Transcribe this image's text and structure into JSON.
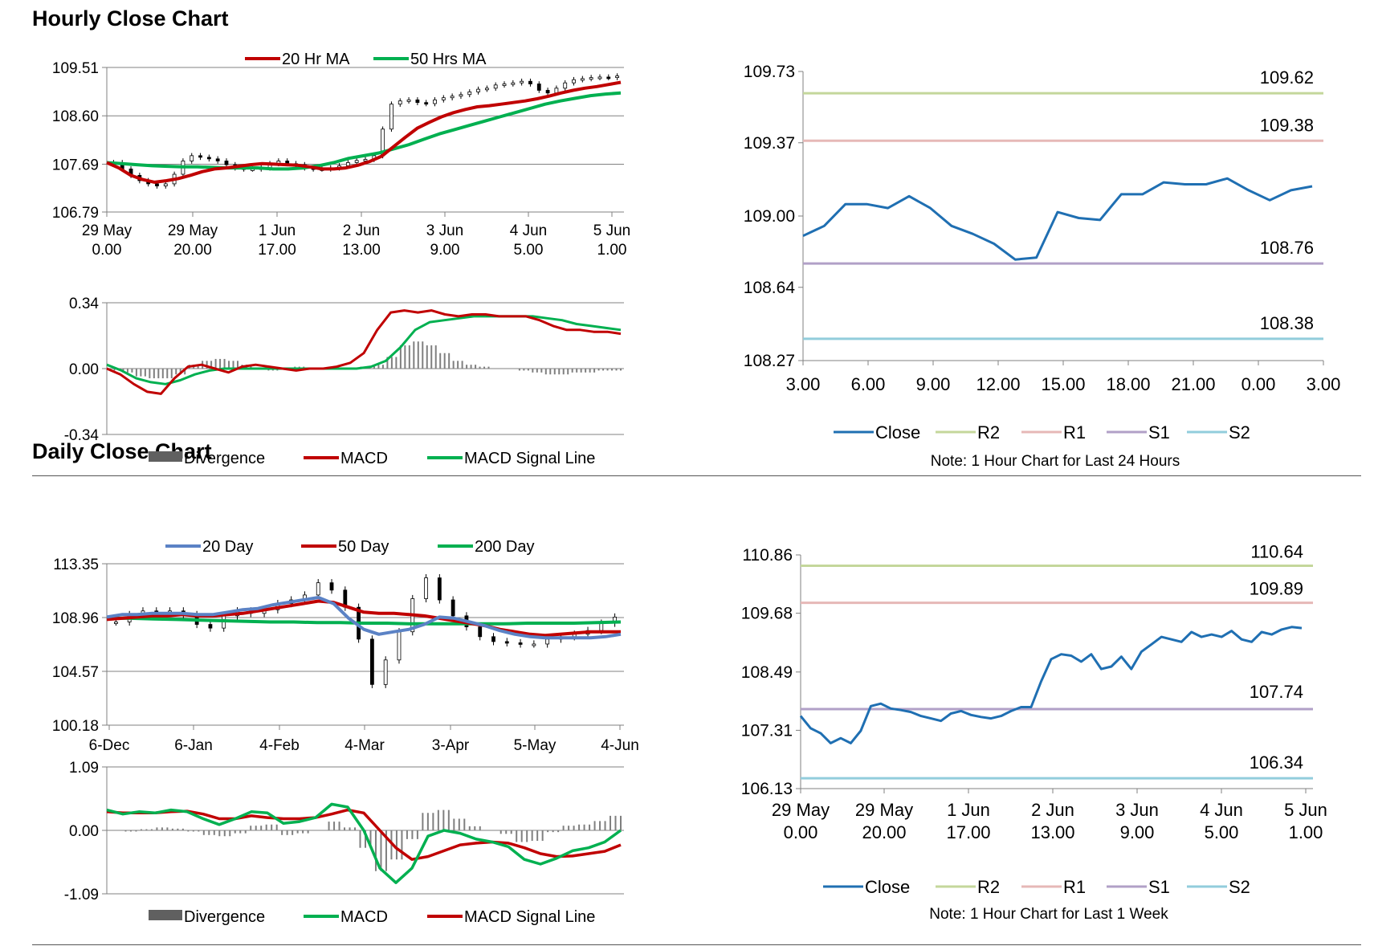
{
  "sections": {
    "hourly_title": "Hourly Close Chart",
    "daily_title": "Daily Close Chart"
  },
  "colors": {
    "red": "#C00000",
    "green": "#00B050",
    "blue_ma": "#5B82C5",
    "close_blue": "#1F6FB2",
    "r2": "#C4D79B",
    "r1": "#E6B8B7",
    "s1": "#B1A0C7",
    "s2": "#92CDDC",
    "bars": "#7F7F7F",
    "grid": "#808080"
  },
  "chart_data": [
    {
      "id": "hourly_price",
      "type": "candlestick-with-ma",
      "title": "",
      "ylim": [
        106.79,
        109.51
      ],
      "y_ticks": [
        "109.51",
        "108.60",
        "107.69",
        "106.79"
      ],
      "x_ticks": [
        [
          "29 May",
          "0.00"
        ],
        [
          "29 May",
          "20.00"
        ],
        [
          "1 Jun",
          "17.00"
        ],
        [
          "2 Jun",
          "13.00"
        ],
        [
          "3 Jun",
          "9.00"
        ],
        [
          "4 Jun",
          "5.00"
        ],
        [
          "5 Jun",
          "1.00"
        ]
      ],
      "legend": [
        "20 Hr MA",
        "50 Hrs MA"
      ],
      "series": [
        {
          "name": "Close",
          "values": [
            107.72,
            107.6,
            107.48,
            107.38,
            107.32,
            107.28,
            107.32,
            107.5,
            107.75,
            107.85,
            107.82,
            107.79,
            107.75,
            107.68,
            107.62,
            107.6,
            107.6,
            107.62,
            107.7,
            107.75,
            107.7,
            107.68,
            107.62,
            107.6,
            107.6,
            107.62,
            107.66,
            107.72,
            107.76,
            107.78,
            107.85,
            108.35,
            108.82,
            108.88,
            108.9,
            108.85,
            108.83,
            108.9,
            108.94,
            108.97,
            109.0,
            109.05,
            109.1,
            109.12,
            109.18,
            109.2,
            109.22,
            109.25,
            109.2,
            109.08,
            109.03,
            109.12,
            109.22,
            109.28,
            109.3,
            109.32,
            109.33,
            109.32,
            109.35
          ]
        },
        {
          "name": "20 Hr MA",
          "values": [
            107.72,
            107.62,
            107.48,
            107.4,
            107.35,
            107.38,
            107.42,
            107.48,
            107.55,
            107.6,
            107.62,
            107.65,
            107.68,
            107.7,
            107.69,
            107.68,
            107.67,
            107.64,
            107.6,
            107.6,
            107.62,
            107.67,
            107.74,
            107.84,
            108.02,
            108.2,
            108.37,
            108.48,
            108.58,
            108.66,
            108.72,
            108.77,
            108.79,
            108.82,
            108.85,
            108.88,
            108.92,
            108.97,
            109.03,
            109.08,
            109.12,
            109.15,
            109.19,
            109.23
          ]
        },
        {
          "name": "50 Hrs MA",
          "values": [
            107.72,
            107.7,
            107.68,
            107.66,
            107.65,
            107.64,
            107.64,
            107.63,
            107.62,
            107.62,
            107.62,
            107.6,
            107.6,
            107.62,
            107.66,
            107.72,
            107.8,
            107.85,
            107.9,
            107.98,
            108.06,
            108.16,
            108.26,
            108.34,
            108.42,
            108.5,
            108.58,
            108.66,
            108.74,
            108.82,
            108.88,
            108.93,
            108.98,
            109.01,
            109.03
          ]
        }
      ]
    },
    {
      "id": "hourly_macd",
      "type": "macd",
      "ylim": [
        -0.34,
        0.34
      ],
      "y_ticks": [
        "0.34",
        "0.00",
        "-0.34"
      ],
      "legend": [
        "Divergence",
        "MACD",
        "MACD Signal Line"
      ],
      "series": [
        {
          "name": "MACD",
          "values": [
            0.0,
            -0.03,
            -0.08,
            -0.12,
            -0.13,
            -0.05,
            0.01,
            0.02,
            0.0,
            -0.02,
            0.01,
            0.02,
            0.01,
            0.0,
            -0.01,
            0.0,
            0.0,
            0.01,
            0.03,
            0.08,
            0.2,
            0.29,
            0.3,
            0.29,
            0.3,
            0.28,
            0.27,
            0.28,
            0.28,
            0.27,
            0.27,
            0.27,
            0.25,
            0.22,
            0.2,
            0.2,
            0.19,
            0.19,
            0.18
          ]
        },
        {
          "name": "MACD Signal Line",
          "values": [
            0.02,
            -0.01,
            -0.05,
            -0.07,
            -0.08,
            -0.06,
            -0.03,
            -0.01,
            0.0,
            0.0,
            0.0,
            0.0,
            0.0,
            0.0,
            0.0,
            0.0,
            0.0,
            0.0,
            0.01,
            0.04,
            0.11,
            0.2,
            0.24,
            0.25,
            0.26,
            0.27,
            0.27,
            0.27,
            0.27,
            0.27,
            0.26,
            0.25,
            0.23,
            0.22,
            0.21,
            0.2
          ]
        },
        {
          "name": "Divergence",
          "values": [
            -0.01,
            -0.02,
            -0.04,
            -0.05,
            -0.05,
            -0.03,
            0.02,
            0.04,
            0.05,
            0.04,
            0.02,
            0.0,
            -0.01,
            0.0,
            0.01,
            0.0,
            0.0,
            0.0,
            0.0,
            0.01,
            0.02,
            0.06,
            0.12,
            0.14,
            0.12,
            0.08,
            0.04,
            0.02,
            0.01,
            0.0,
            0.0,
            -0.01,
            -0.02,
            -0.03,
            -0.03,
            -0.02,
            -0.02,
            -0.01,
            -0.01
          ]
        }
      ]
    },
    {
      "id": "hourly_levels",
      "type": "line",
      "ylim": [
        108.27,
        109.73
      ],
      "y_ticks": [
        "109.73",
        "109.37",
        "109.00",
        "108.64",
        "108.27"
      ],
      "x_ticks": [
        "3.00",
        "6.00",
        "9.00",
        "12.00",
        "15.00",
        "18.00",
        "21.00",
        "0.00",
        "3.00"
      ],
      "legend": [
        "Close",
        "R2",
        "R1",
        "S1",
        "S2"
      ],
      "levels": [
        {
          "name": "R2",
          "value": 109.62,
          "label": "109.62"
        },
        {
          "name": "R1",
          "value": 109.38,
          "label": "109.38"
        },
        {
          "name": "S1",
          "value": 108.76,
          "label": "108.76"
        },
        {
          "name": "S2",
          "value": 108.38,
          "label": "108.38"
        }
      ],
      "series": [
        {
          "name": "Close",
          "values": [
            108.9,
            108.95,
            109.06,
            109.06,
            109.04,
            109.1,
            109.04,
            108.95,
            108.91,
            108.86,
            108.78,
            108.79,
            109.02,
            108.99,
            108.98,
            109.11,
            109.11,
            109.17,
            109.16,
            109.16,
            109.19,
            109.13,
            109.08,
            109.13,
            109.15
          ]
        }
      ],
      "note": "Note: 1 Hour Chart for Last 24 Hours"
    },
    {
      "id": "daily_price",
      "type": "candlestick-with-ma",
      "ylim": [
        100.18,
        113.35
      ],
      "y_ticks": [
        "113.35",
        "108.96",
        "104.57",
        "100.18"
      ],
      "x_ticks": [
        "6-Dec",
        "6-Jan",
        "4-Feb",
        "4-Mar",
        "3-Apr",
        "5-May",
        "4-Jun"
      ],
      "legend": [
        "20 Day",
        "50 Day",
        "200 Day"
      ],
      "series": [
        {
          "name": "Close",
          "values": [
            108.6,
            109.2,
            109.5,
            109.4,
            109.5,
            109.2,
            108.4,
            108.1,
            109.1,
            109.5,
            109.3,
            109.6,
            110.1,
            110.4,
            110.8,
            111.8,
            111.2,
            109.8,
            107.2,
            103.5,
            105.5,
            107.8,
            110.5,
            112.2,
            110.4,
            109.1,
            108.2,
            107.4,
            107.0,
            106.9,
            106.8,
            106.8,
            107.2,
            107.4,
            107.6,
            107.9,
            108.5,
            109.0
          ]
        },
        {
          "name": "20 Day",
          "values": [
            109.0,
            109.2,
            109.2,
            109.3,
            109.3,
            109.3,
            109.2,
            109.2,
            109.4,
            109.6,
            109.7,
            110.0,
            110.2,
            110.4,
            110.6,
            110.1,
            108.9,
            108.0,
            107.6,
            107.8,
            108.0,
            108.4,
            109.0,
            108.9,
            108.6,
            108.3,
            107.9,
            107.6,
            107.4,
            107.3,
            107.3,
            107.3,
            107.3,
            107.4,
            107.6
          ]
        },
        {
          "name": "50 Day",
          "values": [
            108.8,
            108.9,
            109.0,
            109.1,
            109.1,
            109.2,
            109.1,
            109.1,
            109.2,
            109.3,
            109.5,
            109.7,
            109.9,
            110.1,
            110.3,
            110.2,
            109.8,
            109.4,
            109.3,
            109.3,
            109.2,
            109.1,
            108.9,
            108.7,
            108.5,
            108.3,
            108.0,
            107.8,
            107.6,
            107.5,
            107.6,
            107.7,
            107.8,
            107.8,
            107.8
          ]
        },
        {
          "name": "200 Day",
          "values": [
            108.9,
            108.9,
            108.85,
            108.8,
            108.75,
            108.7,
            108.65,
            108.6,
            108.6,
            108.55,
            108.55,
            108.5,
            108.5,
            108.45,
            108.45,
            108.45,
            108.45,
            108.45,
            108.5,
            108.5,
            108.5,
            108.55,
            108.6
          ]
        }
      ]
    },
    {
      "id": "daily_macd",
      "type": "macd",
      "ylim": [
        -1.09,
        1.09
      ],
      "y_ticks": [
        "1.09",
        "0.00",
        "-1.09"
      ],
      "legend": [
        "Divergence",
        "MACD",
        "MACD Signal Line"
      ],
      "series": [
        {
          "name": "MACD",
          "values": [
            0.35,
            0.28,
            0.32,
            0.3,
            0.35,
            0.32,
            0.2,
            0.1,
            0.2,
            0.32,
            0.3,
            0.12,
            0.15,
            0.22,
            0.45,
            0.4,
            0.0,
            -0.65,
            -0.9,
            -0.65,
            -0.1,
            0.0,
            -0.05,
            -0.15,
            -0.2,
            -0.28,
            -0.5,
            -0.58,
            -0.48,
            -0.35,
            -0.3,
            -0.2,
            0.0
          ]
        },
        {
          "name": "MACD Signal Line",
          "values": [
            0.32,
            0.3,
            0.3,
            0.3,
            0.32,
            0.33,
            0.28,
            0.2,
            0.2,
            0.25,
            0.22,
            0.2,
            0.2,
            0.22,
            0.28,
            0.35,
            0.3,
            0.0,
            -0.3,
            -0.5,
            -0.45,
            -0.35,
            -0.25,
            -0.22,
            -0.2,
            -0.22,
            -0.3,
            -0.4,
            -0.45,
            -0.44,
            -0.4,
            -0.36,
            -0.25
          ]
        },
        {
          "name": "Divergence",
          "values": [
            0.0,
            -0.02,
            0.02,
            0.05,
            0.03,
            -0.02,
            -0.08,
            -0.1,
            -0.05,
            0.08,
            0.1,
            -0.08,
            -0.05,
            0.0,
            0.15,
            0.05,
            -0.3,
            -0.7,
            -0.5,
            -0.15,
            0.3,
            0.35,
            0.2,
            0.07,
            0.0,
            -0.06,
            -0.2,
            -0.18,
            -0.03,
            0.08,
            0.1,
            0.16,
            0.25
          ]
        }
      ]
    },
    {
      "id": "daily_levels",
      "type": "line",
      "ylim": [
        106.13,
        110.86
      ],
      "y_ticks": [
        "110.86",
        "109.68",
        "108.49",
        "107.31",
        "106.13"
      ],
      "x_ticks": [
        [
          "29 May",
          "0.00"
        ],
        [
          "29 May",
          "20.00"
        ],
        [
          "1 Jun",
          "17.00"
        ],
        [
          "2 Jun",
          "13.00"
        ],
        [
          "3 Jun",
          "9.00"
        ],
        [
          "4 Jun",
          "5.00"
        ],
        [
          "5 Jun",
          "1.00"
        ]
      ],
      "legend": [
        "Close",
        "R2",
        "R1",
        "S1",
        "S2"
      ],
      "levels": [
        {
          "name": "R2",
          "value": 110.64,
          "label": "110.64"
        },
        {
          "name": "R1",
          "value": 109.89,
          "label": "109.89"
        },
        {
          "name": "S1",
          "value": 107.74,
          "label": "107.74"
        },
        {
          "name": "S2",
          "value": 106.34,
          "label": "106.34"
        }
      ],
      "series": [
        {
          "name": "Close",
          "values": [
            107.6,
            107.35,
            107.25,
            107.05,
            107.15,
            107.05,
            107.3,
            107.8,
            107.85,
            107.75,
            107.72,
            107.68,
            107.6,
            107.55,
            107.5,
            107.65,
            107.7,
            107.62,
            107.58,
            107.55,
            107.6,
            107.7,
            107.78,
            107.78,
            108.3,
            108.75,
            108.85,
            108.82,
            108.7,
            108.85,
            108.55,
            108.6,
            108.8,
            108.55,
            108.9,
            109.05,
            109.2,
            109.15,
            109.1,
            109.3,
            109.2,
            109.25,
            109.2,
            109.32,
            109.15,
            109.1,
            109.3,
            109.25,
            109.35,
            109.4,
            109.38
          ]
        }
      ],
      "note": "Note: 1 Hour Chart for Last 1 Week"
    }
  ]
}
